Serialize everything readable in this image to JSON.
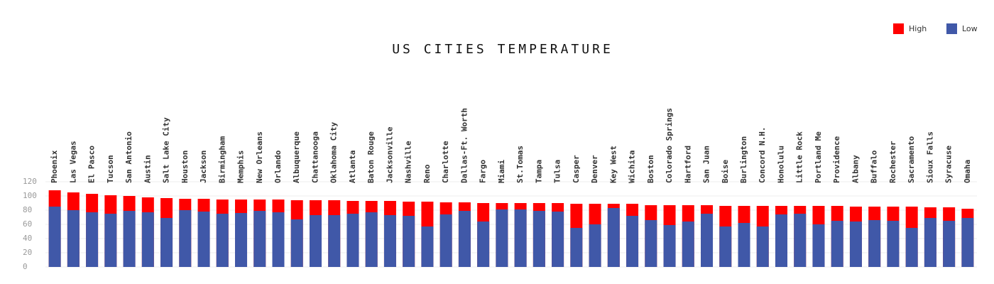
{
  "chart_data": {
    "type": "bar",
    "title": "US CITIES TEMPERATURE",
    "categories": [
      "Phoenix",
      "Las Vegas",
      "El Pasco",
      "Tucson",
      "San Antonio",
      "Austin",
      "Salt Lake City",
      "Houston",
      "Jackson",
      "Birmingham",
      "Memphis",
      "New Orleans",
      "Orlando",
      "Albuquerque",
      "Chattanooga",
      "Oklahoma City",
      "Atlanta",
      "Baton Rouge",
      "Jacksonville",
      "Nashville",
      "Reno",
      "Charlotte",
      "Dallas-Ft. Worth",
      "Fargo",
      "Miami",
      "St.Tomas",
      "Tampa",
      "Tulsa",
      "Casper",
      "Denver",
      "Key West",
      "Wichita",
      "Boston",
      "Colorado Springs",
      "Hartford",
      "San Juan",
      "Boise",
      "Burlington",
      "Concord N.H.",
      "Honolulu",
      "Little Rock",
      "Portland Me",
      "Providence",
      "Albany",
      "Buffalo",
      "Rochester",
      "Sacramento",
      "Sioux Falls",
      "Syracuse",
      "Omaha"
    ],
    "series": [
      {
        "name": "High",
        "color": "#ff0000",
        "values": [
          108,
          105,
          103,
          101,
          100,
          98,
          97,
          96,
          96,
          95,
          95,
          95,
          95,
          94,
          94,
          94,
          93,
          93,
          93,
          92,
          92,
          91,
          91,
          90,
          90,
          90,
          90,
          90,
          89,
          89,
          89,
          89,
          87,
          87,
          87,
          87,
          86,
          86,
          86,
          86,
          86,
          86,
          86,
          85,
          85,
          85,
          85,
          84,
          84,
          82
        ]
      },
      {
        "name": "Low",
        "color": "#4058a8",
        "values": [
          85,
          80,
          77,
          75,
          79,
          77,
          69,
          80,
          78,
          75,
          76,
          79,
          77,
          67,
          73,
          73,
          75,
          77,
          73,
          72,
          57,
          74,
          79,
          64,
          81,
          81,
          79,
          78,
          55,
          60,
          83,
          72,
          66,
          59,
          64,
          75,
          57,
          62,
          57,
          74,
          75,
          60,
          65,
          64,
          66,
          65,
          55,
          69,
          65,
          69
        ]
      }
    ],
    "ylim": [
      0,
      300
    ],
    "yticks": [
      0,
      20,
      40,
      60,
      80,
      100,
      120
    ],
    "grid": true,
    "legend": "top-right"
  }
}
